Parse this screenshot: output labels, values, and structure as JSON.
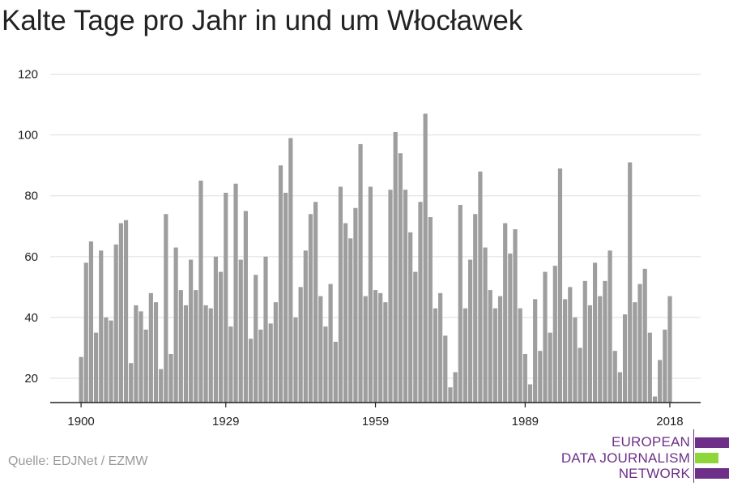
{
  "chart_data": {
    "type": "bar",
    "title": "Kalte Tage pro Jahr in und um Włocławek",
    "xlabel": "",
    "ylabel": "",
    "x_start": 1900,
    "x_ticks": [
      "1900",
      "1929",
      "1959",
      "1989",
      "2018"
    ],
    "y_ticks": [
      20,
      40,
      60,
      80,
      100,
      120
    ],
    "ylim": [
      12,
      120
    ],
    "grid": true,
    "bar_color": "#9e9e9e",
    "grid_color": "#dddddd",
    "axis_color": "#222222",
    "values": [
      27,
      58,
      65,
      35,
      62,
      40,
      39,
      64,
      71,
      72,
      25,
      44,
      42,
      36,
      48,
      45,
      23,
      74,
      28,
      63,
      49,
      44,
      59,
      49,
      85,
      44,
      43,
      60,
      55,
      81,
      37,
      84,
      59,
      75,
      33,
      54,
      36,
      60,
      38,
      45,
      90,
      81,
      99,
      40,
      50,
      62,
      74,
      78,
      47,
      37,
      51,
      32,
      83,
      71,
      66,
      76,
      97,
      47,
      83,
      49,
      48,
      45,
      82,
      101,
      94,
      82,
      68,
      55,
      78,
      107,
      73,
      43,
      48,
      34,
      17,
      22,
      77,
      43,
      59,
      74,
      88,
      63,
      49,
      43,
      47,
      71,
      61,
      69,
      43,
      28,
      18,
      46,
      29,
      55,
      35,
      57,
      89,
      46,
      50,
      40,
      30,
      52,
      44,
      58,
      47,
      52,
      62,
      29,
      22,
      41,
      91,
      45,
      51,
      56,
      35,
      14,
      26,
      36,
      47
    ]
  },
  "source": "Quelle: EDJNet / EZMW",
  "logo": {
    "lines": [
      "EUROPEAN",
      "DATA JOURNALISM",
      "NETWORK"
    ],
    "text_color": "#6d2f87",
    "bar_colors": [
      "#6d2f87",
      "#8fd63a",
      "#6d2f87"
    ]
  }
}
